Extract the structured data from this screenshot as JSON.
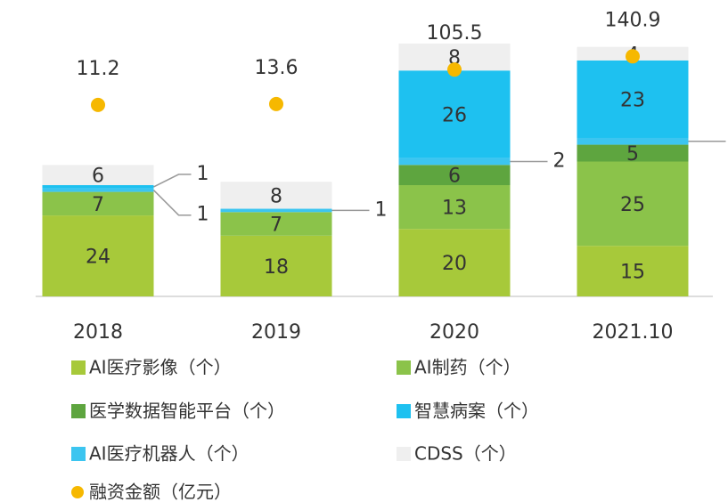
{
  "chart_data": {
    "type": "bar",
    "stacked": true,
    "categories": [
      "2018",
      "2019",
      "2020",
      "2021.10"
    ],
    "ylim": [
      0,
      80
    ],
    "y2lim": [
      -500,
      220
    ],
    "series": [
      {
        "name": "AI医疗影像（个）",
        "color": "#a7c93a",
        "values": [
          24,
          18,
          20,
          15
        ]
      },
      {
        "name": "AI制药（个）",
        "color": "#8bc34a",
        "values": [
          7,
          7,
          13,
          25
        ]
      },
      {
        "name": "医学数据智能平台（个）",
        "color": "#5ea53f",
        "values": [
          0,
          0,
          6,
          5
        ]
      },
      {
        "name": "AI医疗机器人（个）",
        "color": "#3cc5f0",
        "values": [
          1,
          1,
          2,
          2
        ]
      },
      {
        "name": "智慧病案（个）",
        "color": "#1ec1f0",
        "values": [
          1,
          0,
          26,
          23
        ]
      },
      {
        "name": "CDSS（个）",
        "color": "#efefef",
        "values": [
          6,
          8,
          8,
          4
        ]
      },
      {
        "name": "融资金额（亿元）",
        "color": "#f6b800",
        "type": "scatter",
        "axis": "y2",
        "values": [
          11.2,
          13.6,
          105.5,
          140.9
        ]
      }
    ]
  }
}
